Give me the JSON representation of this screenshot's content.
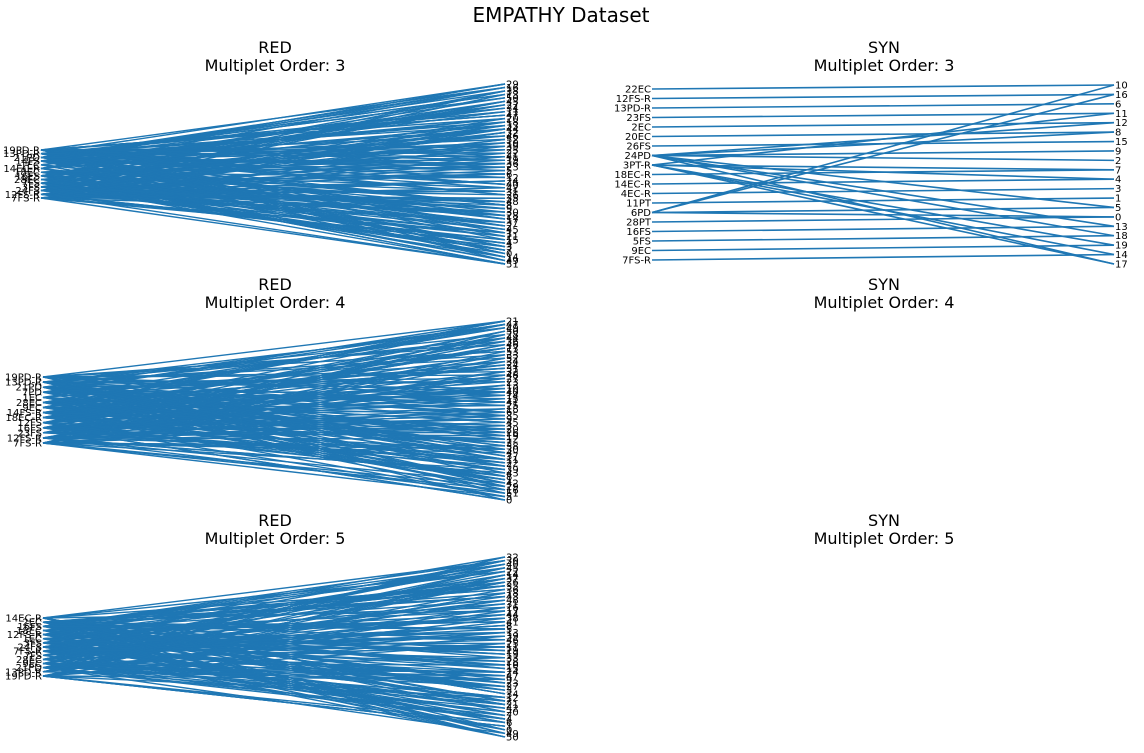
{
  "figure": {
    "title": "EMPATHY Dataset"
  },
  "colors": {
    "line": "#1f77b4",
    "text": "#000000",
    "background": "#ffffff"
  },
  "chart_data": [
    {
      "type": "bipartite-lines",
      "title": "RED\nMultiplet Order: 3",
      "title_lines": [
        "RED",
        "Multiplet Order: 3"
      ],
      "left_labels": [
        "19PD-R",
        "13PD-R",
        "21PD",
        "14FS",
        "1EC",
        "14EC-R",
        "18EC",
        "16FS",
        "28EC",
        "7FS",
        "3FS",
        "24FS",
        "12FS-R",
        "7FS-R"
      ],
      "right_labels": [
        "29",
        "16",
        "38",
        "13",
        "50",
        "43",
        "27",
        "34",
        "11",
        "47",
        "20",
        "18",
        "33",
        "44",
        "32",
        "46",
        "52",
        "10",
        "39",
        "25",
        "22",
        "41",
        "19",
        "36",
        "23",
        "5",
        "6",
        "12",
        "24",
        "40",
        "42",
        "31",
        "26",
        "35",
        "48",
        "8",
        "9",
        "30",
        "28",
        "17",
        "37",
        "2",
        "45",
        "1",
        "21",
        "15",
        "4",
        "3",
        "7",
        "0",
        "14",
        "49",
        "51"
      ],
      "connections": "dense (many left-right links)"
    },
    {
      "type": "bipartite-lines",
      "title": "SYN\nMultiplet Order: 3",
      "title_lines": [
        "SYN",
        "Multiplet Order: 3"
      ],
      "left_labels": [
        "22EC",
        "12FS-R",
        "13PD-R",
        "23FS",
        "2EC",
        "20EC",
        "26FS",
        "24PD",
        "3PT-R",
        "18EC-R",
        "14EC-R",
        "4EC-R",
        "11PT",
        "6PD",
        "28PT",
        "16FS",
        "5FS",
        "9EC",
        "7FS-R"
      ],
      "right_labels": [
        "10",
        "16",
        "6",
        "11",
        "12",
        "8",
        "15",
        "9",
        "2",
        "7",
        "4",
        "3",
        "1",
        "5",
        "0",
        "13",
        "18",
        "19",
        "14",
        "17"
      ],
      "edges": [
        [
          "22EC",
          "10"
        ],
        [
          "12FS-R",
          "16"
        ],
        [
          "13PD-R",
          "6"
        ],
        [
          "23FS",
          "11"
        ],
        [
          "2EC",
          "12"
        ],
        [
          "20EC",
          "8"
        ],
        [
          "26FS",
          "15"
        ],
        [
          "18EC-R",
          "7"
        ],
        [
          "14EC-R",
          "4"
        ],
        [
          "4EC-R",
          "3"
        ],
        [
          "11PT",
          "1"
        ],
        [
          "28PT",
          "0"
        ],
        [
          "16FS",
          "13"
        ],
        [
          "5FS",
          "18"
        ],
        [
          "9EC",
          "19"
        ],
        [
          "7FS-R",
          "14"
        ],
        [
          "24PD",
          "9"
        ],
        [
          "24PD",
          "2"
        ],
        [
          "24PD",
          "12"
        ],
        [
          "24PD",
          "8"
        ],
        [
          "24PD",
          "13"
        ],
        [
          "24PD",
          "18"
        ],
        [
          "24PD",
          "17"
        ],
        [
          "24PD",
          "5"
        ],
        [
          "3PT-R",
          "7"
        ],
        [
          "3PT-R",
          "4"
        ],
        [
          "3PT-R",
          "19"
        ],
        [
          "3PT-R",
          "14"
        ],
        [
          "3PT-R",
          "17"
        ],
        [
          "3PT-R",
          "11"
        ],
        [
          "6PD",
          "5"
        ],
        [
          "6PD",
          "10"
        ],
        [
          "6PD",
          "16"
        ],
        [
          "6PD",
          "0"
        ]
      ]
    },
    {
      "type": "bipartite-lines",
      "title": "RED\nMultiplet Order: 4",
      "title_lines": [
        "RED",
        "Multiplet Order: 4"
      ],
      "left_labels": [
        "19PD-R",
        "13PD-R",
        "21PD",
        "7PD",
        "1EC",
        "28EC",
        "9EC",
        "14FS-R",
        "18EC-R",
        "12FS",
        "16FS",
        "23FS",
        "12FS-R",
        "7FS-R"
      ],
      "right_labels": [
        "21",
        "47",
        "49",
        "50",
        "28",
        "44",
        "36",
        "46",
        "17",
        "53",
        "33",
        "52",
        "34",
        "24",
        "31",
        "32",
        "48",
        "27",
        "23",
        "13",
        "10",
        "40",
        "14",
        "15",
        "41",
        "25",
        "18",
        "6",
        "35",
        "9",
        "45",
        "3",
        "20",
        "26",
        "19",
        "12",
        "2",
        "38",
        "30",
        "4",
        "37",
        "11",
        "22",
        "7",
        "39",
        "43",
        "8",
        "1",
        "42",
        "29",
        "16",
        "51",
        "5",
        "0"
      ],
      "connections": "dense (many left-right links)"
    },
    {
      "type": "empty",
      "title": "SYN\nMultiplet Order: 4",
      "title_lines": [
        "SYN",
        "Multiplet Order: 4"
      ]
    },
    {
      "type": "bipartite-lines",
      "title": "RED\nMultiplet Order: 5",
      "title_lines": [
        "RED",
        "Multiplet Order: 5"
      ],
      "left_labels": [
        "14EC-R",
        "2EC",
        "16FS",
        "18EC",
        "12FS-R",
        "1EC",
        "3FS",
        "24FS",
        "7FS-R",
        "7FS",
        "28EC",
        "9EC",
        "21PD",
        "13PD-R",
        "19PD-R"
      ],
      "right_labels": [
        "32",
        "30",
        "40",
        "45",
        "22",
        "14",
        "37",
        "26",
        "35",
        "36",
        "18",
        "43",
        "48",
        "31",
        "16",
        "17",
        "44",
        "38",
        "41",
        "8",
        "5",
        "13",
        "39",
        "46",
        "25",
        "11",
        "29",
        "19",
        "33",
        "28",
        "10",
        "15",
        "24",
        "47",
        "9",
        "23",
        "27",
        "3",
        "34",
        "12",
        "2",
        "21",
        "42",
        "20",
        "7",
        "4",
        "6",
        "1",
        "0",
        "49",
        "50"
      ],
      "connections": "dense (many left-right links)"
    },
    {
      "type": "empty",
      "title": "SYN\nMultiplet Order: 5",
      "title_lines": [
        "SYN",
        "Multiplet Order: 5"
      ]
    }
  ]
}
